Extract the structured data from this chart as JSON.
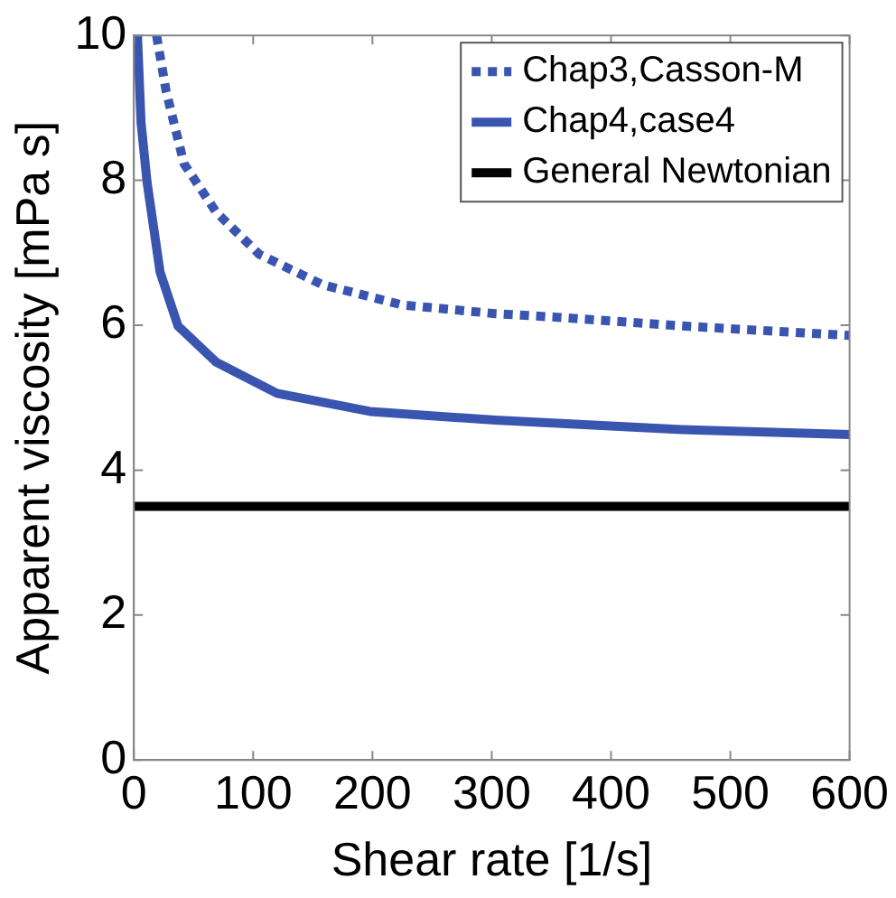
{
  "chart_data": {
    "type": "line",
    "xlabel": "Shear rate [1/s]",
    "ylabel": "Apparent viscosity [mPa s]",
    "xlim": [
      0,
      600
    ],
    "xticks": [
      0,
      100,
      200,
      300,
      400,
      500,
      600
    ],
    "ylim": [
      0,
      10
    ],
    "yticks": [
      0,
      2,
      4,
      6,
      8,
      10
    ],
    "grid": false,
    "legend": "top right",
    "marker": "none",
    "series": [
      {
        "name": "Chap3,Casson-M",
        "color": "#3a55b0",
        "line_style": "dotted",
        "x": [
          19,
          27,
          42,
          69,
          105,
          158,
          225,
          303,
          355,
          459,
          600
        ],
        "values": [
          10,
          9.23,
          8.23,
          7.56,
          6.98,
          6.56,
          6.28,
          6.16,
          6.11,
          5.99,
          5.86
        ]
      },
      {
        "name": "Chap4,case4",
        "color": "#3a55b0",
        "line_style": "solid",
        "x": [
          3,
          6,
          11,
          22,
          37,
          69,
          120,
          198,
          303,
          459,
          600
        ],
        "values": [
          10,
          8.8,
          7.98,
          6.73,
          5.99,
          5.49,
          5.06,
          4.81,
          4.69,
          4.56,
          4.49
        ]
      },
      {
        "name": "General Newtonian",
        "color": "#000000",
        "line_style": "solid",
        "x": [
          0,
          600
        ],
        "values": [
          3.5,
          3.5
        ]
      }
    ]
  }
}
